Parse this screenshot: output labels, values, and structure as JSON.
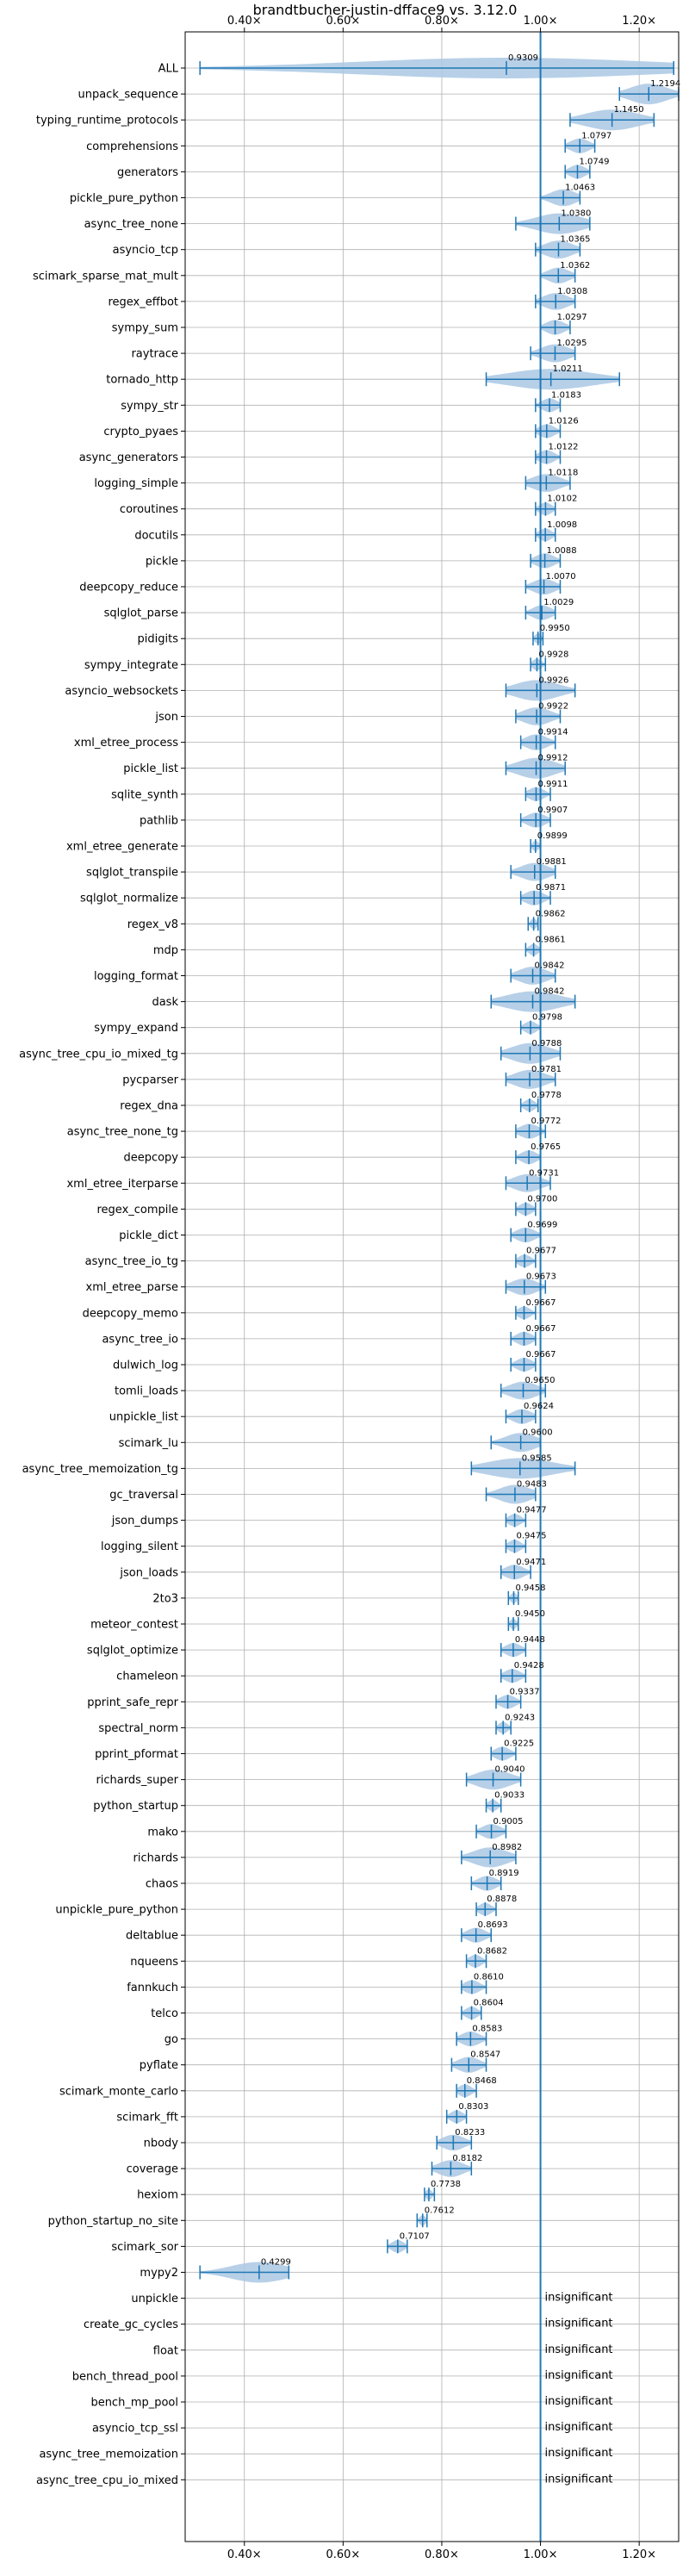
{
  "chart_data": {
    "type": "violin",
    "title": "brandtbucher-justin-dfface9 vs. 3.12.0",
    "xlim": [
      0.28,
      1.28
    ],
    "xticks": [
      0.4,
      0.6,
      0.8,
      1.0,
      1.2
    ],
    "xtick_labels": [
      "0.40×",
      "0.60×",
      "0.80×",
      "1.00×",
      "1.20×"
    ],
    "grid": true,
    "reference_line": 1.0,
    "accent_color": "#1f77b4",
    "violin_color": "#aac8e4",
    "insignificant_label": "insignificant",
    "items": [
      {
        "name": "ALL",
        "value": 0.9309,
        "label": "0.9309",
        "lo": 0.31,
        "hi": 1.27
      },
      {
        "name": "unpack_sequence",
        "value": 1.2194,
        "label": "1.2194",
        "lo": 1.16,
        "hi": 1.28
      },
      {
        "name": "typing_runtime_protocols",
        "value": 1.145,
        "label": "1.1450",
        "lo": 1.06,
        "hi": 1.23
      },
      {
        "name": "comprehensions",
        "value": 1.0797,
        "label": "1.0797",
        "lo": 1.05,
        "hi": 1.11
      },
      {
        "name": "generators",
        "value": 1.0749,
        "label": "1.0749",
        "lo": 1.05,
        "hi": 1.1
      },
      {
        "name": "pickle_pure_python",
        "value": 1.0463,
        "label": "1.0463",
        "lo": 1.0,
        "hi": 1.08
      },
      {
        "name": "async_tree_none",
        "value": 1.038,
        "label": "1.0380",
        "lo": 0.95,
        "hi": 1.1
      },
      {
        "name": "asyncio_tcp",
        "value": 1.0365,
        "label": "1.0365",
        "lo": 0.99,
        "hi": 1.08
      },
      {
        "name": "scimark_sparse_mat_mult",
        "value": 1.0362,
        "label": "1.0362",
        "lo": 1.0,
        "hi": 1.07
      },
      {
        "name": "regex_effbot",
        "value": 1.0308,
        "label": "1.0308",
        "lo": 0.99,
        "hi": 1.07
      },
      {
        "name": "sympy_sum",
        "value": 1.0297,
        "label": "1.0297",
        "lo": 1.0,
        "hi": 1.06
      },
      {
        "name": "raytrace",
        "value": 1.0295,
        "label": "1.0295",
        "lo": 0.98,
        "hi": 1.07
      },
      {
        "name": "tornado_http",
        "value": 1.0211,
        "label": "1.0211",
        "lo": 0.89,
        "hi": 1.16
      },
      {
        "name": "sympy_str",
        "value": 1.0183,
        "label": "1.0183",
        "lo": 0.99,
        "hi": 1.04
      },
      {
        "name": "crypto_pyaes",
        "value": 1.0126,
        "label": "1.0126",
        "lo": 0.99,
        "hi": 1.04
      },
      {
        "name": "async_generators",
        "value": 1.0122,
        "label": "1.0122",
        "lo": 0.99,
        "hi": 1.04
      },
      {
        "name": "logging_simple",
        "value": 1.0118,
        "label": "1.0118",
        "lo": 0.97,
        "hi": 1.06
      },
      {
        "name": "coroutines",
        "value": 1.0102,
        "label": "1.0102",
        "lo": 0.99,
        "hi": 1.03
      },
      {
        "name": "docutils",
        "value": 1.0098,
        "label": "1.0098",
        "lo": 0.99,
        "hi": 1.03
      },
      {
        "name": "pickle",
        "value": 1.0088,
        "label": "1.0088",
        "lo": 0.98,
        "hi": 1.04
      },
      {
        "name": "deepcopy_reduce",
        "value": 1.007,
        "label": "1.0070",
        "lo": 0.97,
        "hi": 1.04
      },
      {
        "name": "sqlglot_parse",
        "value": 1.0029,
        "label": "1.0029",
        "lo": 0.97,
        "hi": 1.03
      },
      {
        "name": "pidigits",
        "value": 0.995,
        "label": "0.9950",
        "lo": 0.985,
        "hi": 1.005
      },
      {
        "name": "sympy_integrate",
        "value": 0.9928,
        "label": "0.9928",
        "lo": 0.98,
        "hi": 1.01
      },
      {
        "name": "asyncio_websockets",
        "value": 0.9926,
        "label": "0.9926",
        "lo": 0.93,
        "hi": 1.07
      },
      {
        "name": "json",
        "value": 0.9922,
        "label": "0.9922",
        "lo": 0.95,
        "hi": 1.04
      },
      {
        "name": "xml_etree_process",
        "value": 0.9914,
        "label": "0.9914",
        "lo": 0.96,
        "hi": 1.03
      },
      {
        "name": "pickle_list",
        "value": 0.9912,
        "label": "0.9912",
        "lo": 0.93,
        "hi": 1.05
      },
      {
        "name": "sqlite_synth",
        "value": 0.9911,
        "label": "0.9911",
        "lo": 0.97,
        "hi": 1.02
      },
      {
        "name": "pathlib",
        "value": 0.9907,
        "label": "0.9907",
        "lo": 0.96,
        "hi": 1.02
      },
      {
        "name": "xml_etree_generate",
        "value": 0.9899,
        "label": "0.9899",
        "lo": 0.98,
        "hi": 1.0
      },
      {
        "name": "sqlglot_transpile",
        "value": 0.9881,
        "label": "0.9881",
        "lo": 0.94,
        "hi": 1.03
      },
      {
        "name": "sqlglot_normalize",
        "value": 0.9871,
        "label": "0.9871",
        "lo": 0.96,
        "hi": 1.02
      },
      {
        "name": "regex_v8",
        "value": 0.9862,
        "label": "0.9862",
        "lo": 0.975,
        "hi": 0.995
      },
      {
        "name": "mdp",
        "value": 0.9861,
        "label": "0.9861",
        "lo": 0.97,
        "hi": 1.0
      },
      {
        "name": "logging_format",
        "value": 0.9842,
        "label": "0.9842",
        "lo": 0.94,
        "hi": 1.03
      },
      {
        "name": "dask",
        "value": 0.9842,
        "label": "0.9842",
        "lo": 0.9,
        "hi": 1.07
      },
      {
        "name": "sympy_expand",
        "value": 0.9798,
        "label": "0.9798",
        "lo": 0.96,
        "hi": 1.0
      },
      {
        "name": "async_tree_cpu_io_mixed_tg",
        "value": 0.9788,
        "label": "0.9788",
        "lo": 0.92,
        "hi": 1.04
      },
      {
        "name": "pycparser",
        "value": 0.9781,
        "label": "0.9781",
        "lo": 0.93,
        "hi": 1.03
      },
      {
        "name": "regex_dna",
        "value": 0.9778,
        "label": "0.9778",
        "lo": 0.96,
        "hi": 0.995
      },
      {
        "name": "async_tree_none_tg",
        "value": 0.9772,
        "label": "0.9772",
        "lo": 0.95,
        "hi": 1.01
      },
      {
        "name": "deepcopy",
        "value": 0.9765,
        "label": "0.9765",
        "lo": 0.95,
        "hi": 1.0
      },
      {
        "name": "xml_etree_iterparse",
        "value": 0.9731,
        "label": "0.9731",
        "lo": 0.93,
        "hi": 1.02
      },
      {
        "name": "regex_compile",
        "value": 0.97,
        "label": "0.9700",
        "lo": 0.95,
        "hi": 0.99
      },
      {
        "name": "pickle_dict",
        "value": 0.9699,
        "label": "0.9699",
        "lo": 0.94,
        "hi": 1.0
      },
      {
        "name": "async_tree_io_tg",
        "value": 0.9677,
        "label": "0.9677",
        "lo": 0.95,
        "hi": 0.99
      },
      {
        "name": "xml_etree_parse",
        "value": 0.9673,
        "label": "0.9673",
        "lo": 0.93,
        "hi": 1.01
      },
      {
        "name": "deepcopy_memo",
        "value": 0.9667,
        "label": "0.9667",
        "lo": 0.95,
        "hi": 0.99
      },
      {
        "name": "async_tree_io",
        "value": 0.9667,
        "label": "0.9667",
        "lo": 0.94,
        "hi": 0.99
      },
      {
        "name": "dulwich_log",
        "value": 0.9667,
        "label": "0.9667",
        "lo": 0.94,
        "hi": 0.99
      },
      {
        "name": "tomli_loads",
        "value": 0.965,
        "label": "0.9650",
        "lo": 0.92,
        "hi": 1.01
      },
      {
        "name": "unpickle_list",
        "value": 0.9624,
        "label": "0.9624",
        "lo": 0.93,
        "hi": 0.99
      },
      {
        "name": "scimark_lu",
        "value": 0.96,
        "label": "0.9600",
        "lo": 0.9,
        "hi": 1.0
      },
      {
        "name": "async_tree_memoization_tg",
        "value": 0.9585,
        "label": "0.9585",
        "lo": 0.86,
        "hi": 1.07
      },
      {
        "name": "gc_traversal",
        "value": 0.9483,
        "label": "0.9483",
        "lo": 0.89,
        "hi": 0.99
      },
      {
        "name": "json_dumps",
        "value": 0.9477,
        "label": "0.9477",
        "lo": 0.93,
        "hi": 0.97
      },
      {
        "name": "logging_silent",
        "value": 0.9475,
        "label": "0.9475",
        "lo": 0.93,
        "hi": 0.97
      },
      {
        "name": "json_loads",
        "value": 0.9471,
        "label": "0.9471",
        "lo": 0.92,
        "hi": 0.98
      },
      {
        "name": "2to3",
        "value": 0.9458,
        "label": "0.9458",
        "lo": 0.935,
        "hi": 0.955
      },
      {
        "name": "meteor_contest",
        "value": 0.945,
        "label": "0.9450",
        "lo": 0.935,
        "hi": 0.955
      },
      {
        "name": "sqlglot_optimize",
        "value": 0.9448,
        "label": "0.9448",
        "lo": 0.92,
        "hi": 0.97
      },
      {
        "name": "chameleon",
        "value": 0.9428,
        "label": "0.9428",
        "lo": 0.92,
        "hi": 0.97
      },
      {
        "name": "pprint_safe_repr",
        "value": 0.9337,
        "label": "0.9337",
        "lo": 0.91,
        "hi": 0.96
      },
      {
        "name": "spectral_norm",
        "value": 0.9243,
        "label": "0.9243",
        "lo": 0.91,
        "hi": 0.94
      },
      {
        "name": "pprint_pformat",
        "value": 0.9225,
        "label": "0.9225",
        "lo": 0.9,
        "hi": 0.95
      },
      {
        "name": "richards_super",
        "value": 0.904,
        "label": "0.9040",
        "lo": 0.85,
        "hi": 0.96
      },
      {
        "name": "python_startup",
        "value": 0.9033,
        "label": "0.9033",
        "lo": 0.89,
        "hi": 0.92
      },
      {
        "name": "mako",
        "value": 0.9005,
        "label": "0.9005",
        "lo": 0.87,
        "hi": 0.93
      },
      {
        "name": "richards",
        "value": 0.8982,
        "label": "0.8982",
        "lo": 0.84,
        "hi": 0.95
      },
      {
        "name": "chaos",
        "value": 0.8919,
        "label": "0.8919",
        "lo": 0.86,
        "hi": 0.92
      },
      {
        "name": "unpickle_pure_python",
        "value": 0.8878,
        "label": "0.8878",
        "lo": 0.87,
        "hi": 0.91
      },
      {
        "name": "deltablue",
        "value": 0.8693,
        "label": "0.8693",
        "lo": 0.84,
        "hi": 0.9
      },
      {
        "name": "nqueens",
        "value": 0.8682,
        "label": "0.8682",
        "lo": 0.85,
        "hi": 0.89
      },
      {
        "name": "fannkuch",
        "value": 0.861,
        "label": "0.8610",
        "lo": 0.84,
        "hi": 0.89
      },
      {
        "name": "telco",
        "value": 0.8604,
        "label": "0.8604",
        "lo": 0.84,
        "hi": 0.88
      },
      {
        "name": "go",
        "value": 0.8583,
        "label": "0.8583",
        "lo": 0.83,
        "hi": 0.89
      },
      {
        "name": "pyflate",
        "value": 0.8547,
        "label": "0.8547",
        "lo": 0.82,
        "hi": 0.89
      },
      {
        "name": "scimark_monte_carlo",
        "value": 0.8468,
        "label": "0.8468",
        "lo": 0.83,
        "hi": 0.87
      },
      {
        "name": "scimark_fft",
        "value": 0.8303,
        "label": "0.8303",
        "lo": 0.81,
        "hi": 0.85
      },
      {
        "name": "nbody",
        "value": 0.8233,
        "label": "0.8233",
        "lo": 0.79,
        "hi": 0.86
      },
      {
        "name": "coverage",
        "value": 0.8182,
        "label": "0.8182",
        "lo": 0.78,
        "hi": 0.86
      },
      {
        "name": "hexiom",
        "value": 0.7738,
        "label": "0.7738",
        "lo": 0.765,
        "hi": 0.785
      },
      {
        "name": "python_startup_no_site",
        "value": 0.7612,
        "label": "0.7612",
        "lo": 0.75,
        "hi": 0.77
      },
      {
        "name": "scimark_sor",
        "value": 0.7107,
        "label": "0.7107",
        "lo": 0.69,
        "hi": 0.73
      },
      {
        "name": "mypy2",
        "value": 0.4299,
        "label": "0.4299",
        "lo": 0.31,
        "hi": 0.49
      },
      {
        "name": "unpickle",
        "value": null,
        "label": "insignificant"
      },
      {
        "name": "create_gc_cycles",
        "value": null,
        "label": "insignificant"
      },
      {
        "name": "float",
        "value": null,
        "label": "insignificant"
      },
      {
        "name": "bench_thread_pool",
        "value": null,
        "label": "insignificant"
      },
      {
        "name": "bench_mp_pool",
        "value": null,
        "label": "insignificant"
      },
      {
        "name": "asyncio_tcp_ssl",
        "value": null,
        "label": "insignificant"
      },
      {
        "name": "async_tree_memoization",
        "value": null,
        "label": "insignificant"
      },
      {
        "name": "async_tree_cpu_io_mixed",
        "value": null,
        "label": "insignificant"
      }
    ]
  }
}
